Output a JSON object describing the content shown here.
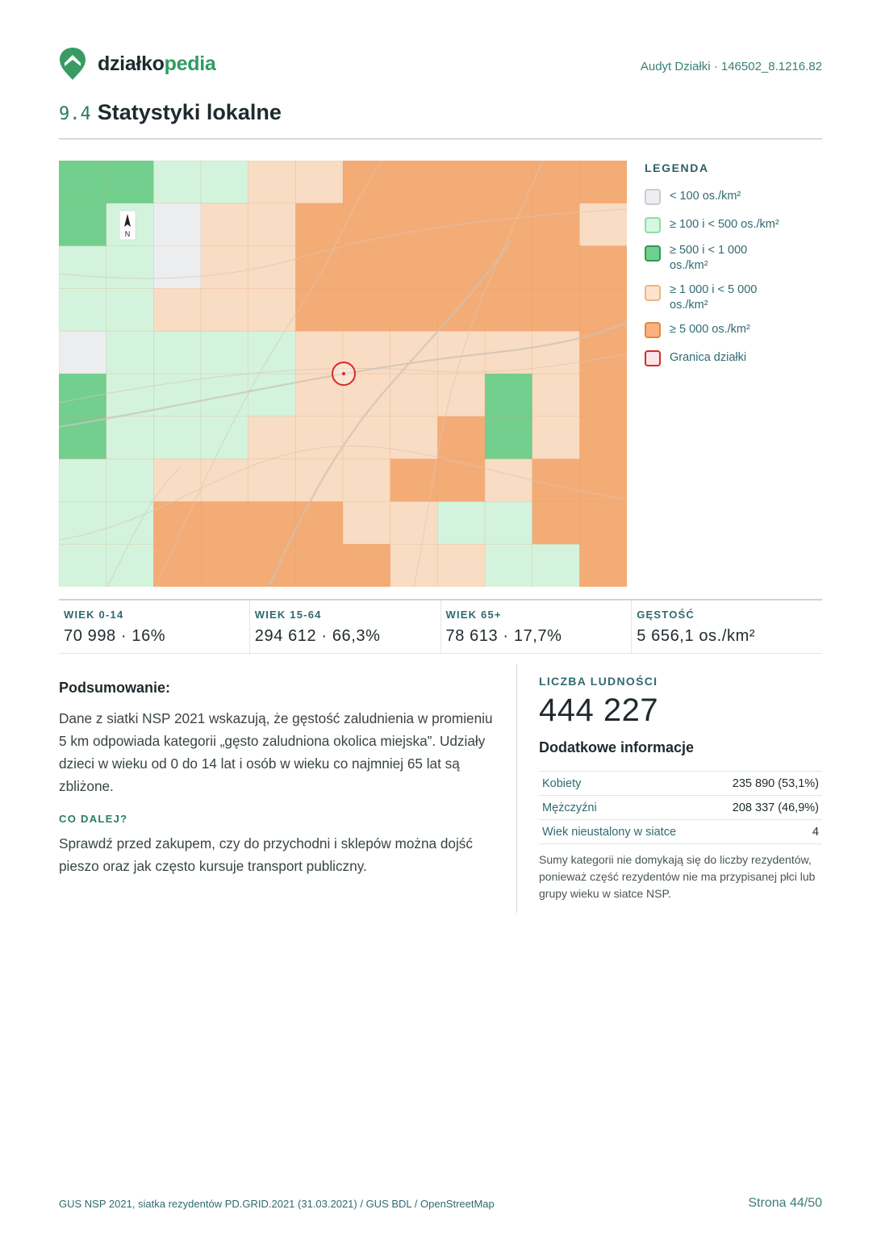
{
  "header": {
    "brand_part1": "działko",
    "brand_part2": "pedia",
    "audit_label": "Audyt Działki · 146502_8.1216.82"
  },
  "section": {
    "number": "9.4",
    "title": "Statystyki lokalne"
  },
  "map": {
    "north_label": "N",
    "parcel_boundary_color": "#d42a2a"
  },
  "legend": {
    "title": "LEGENDA",
    "items": [
      {
        "label": "< 100 os./km²",
        "fill": "#eceef0",
        "border": "#c9cdd1"
      },
      {
        "label": "≥ 100 i < 500 os./km²",
        "fill": "#d6f7e2",
        "border": "#8fdcaa"
      },
      {
        "label": "≥ 500 i < 1 000 os./km²",
        "fill": "#6fd08e",
        "border": "#2f9a55"
      },
      {
        "label": "≥ 1 000 i < 5 000 os./km²",
        "fill": "#fde3cc",
        "border": "#f0b47e"
      },
      {
        "label": "≥ 5 000 os./km²",
        "fill": "#f8b27e",
        "border": "#e3873f"
      },
      {
        "label": "Granica działki",
        "fill": "#fbe5e7",
        "border": "#d42a2a"
      }
    ]
  },
  "stats": [
    {
      "label": "WIEK 0-14",
      "value": "70 998 · 16%"
    },
    {
      "label": "WIEK 15-64",
      "value": "294 612 · 66,3%"
    },
    {
      "label": "WIEK 65+",
      "value": "78 613 · 17,7%"
    },
    {
      "label": "GĘSTOŚĆ",
      "value": "5 656,1 os./km²"
    }
  ],
  "summary": {
    "heading": "Podsumowanie:",
    "text": "Dane z siatki NSP 2021 wskazują, że gęstość zaludnienia w promieniu 5 km odpowiada kategorii „gęsto zaludniona okolica miejska”. Udziały dzieci w wieku od 0 do 14 lat i osób w wieku co najmniej 65 lat są zbliżone.",
    "next_heading": "CO DALEJ?",
    "next_text": "Sprawdź przed zakupem, czy do przychodni i sklepów można dojść pieszo oraz jak często kursuje transport publiczny."
  },
  "population": {
    "label": "LICZBA LUDNOŚCI",
    "value": "444 227",
    "extra_heading": "Dodatkowe informacje",
    "rows": [
      {
        "key": "Kobiety",
        "value": "235 890 (53,1%)"
      },
      {
        "key": "Mężczyźni",
        "value": "208 337 (46,9%)"
      },
      {
        "key": "Wiek nieustalony w siatce",
        "value": "4"
      }
    ],
    "note": "Sumy kategorii nie domykają się do liczby rezydentów, ponieważ część rezydentów nie ma przypisanej płci lub grupy wieku w siatce NSP."
  },
  "footer": {
    "source": "GUS NSP 2021, siatka rezydentów PD.GRID.2021 (31.03.2021) / GUS BDL / OpenStreetMap",
    "page": "Strona 44/50"
  }
}
